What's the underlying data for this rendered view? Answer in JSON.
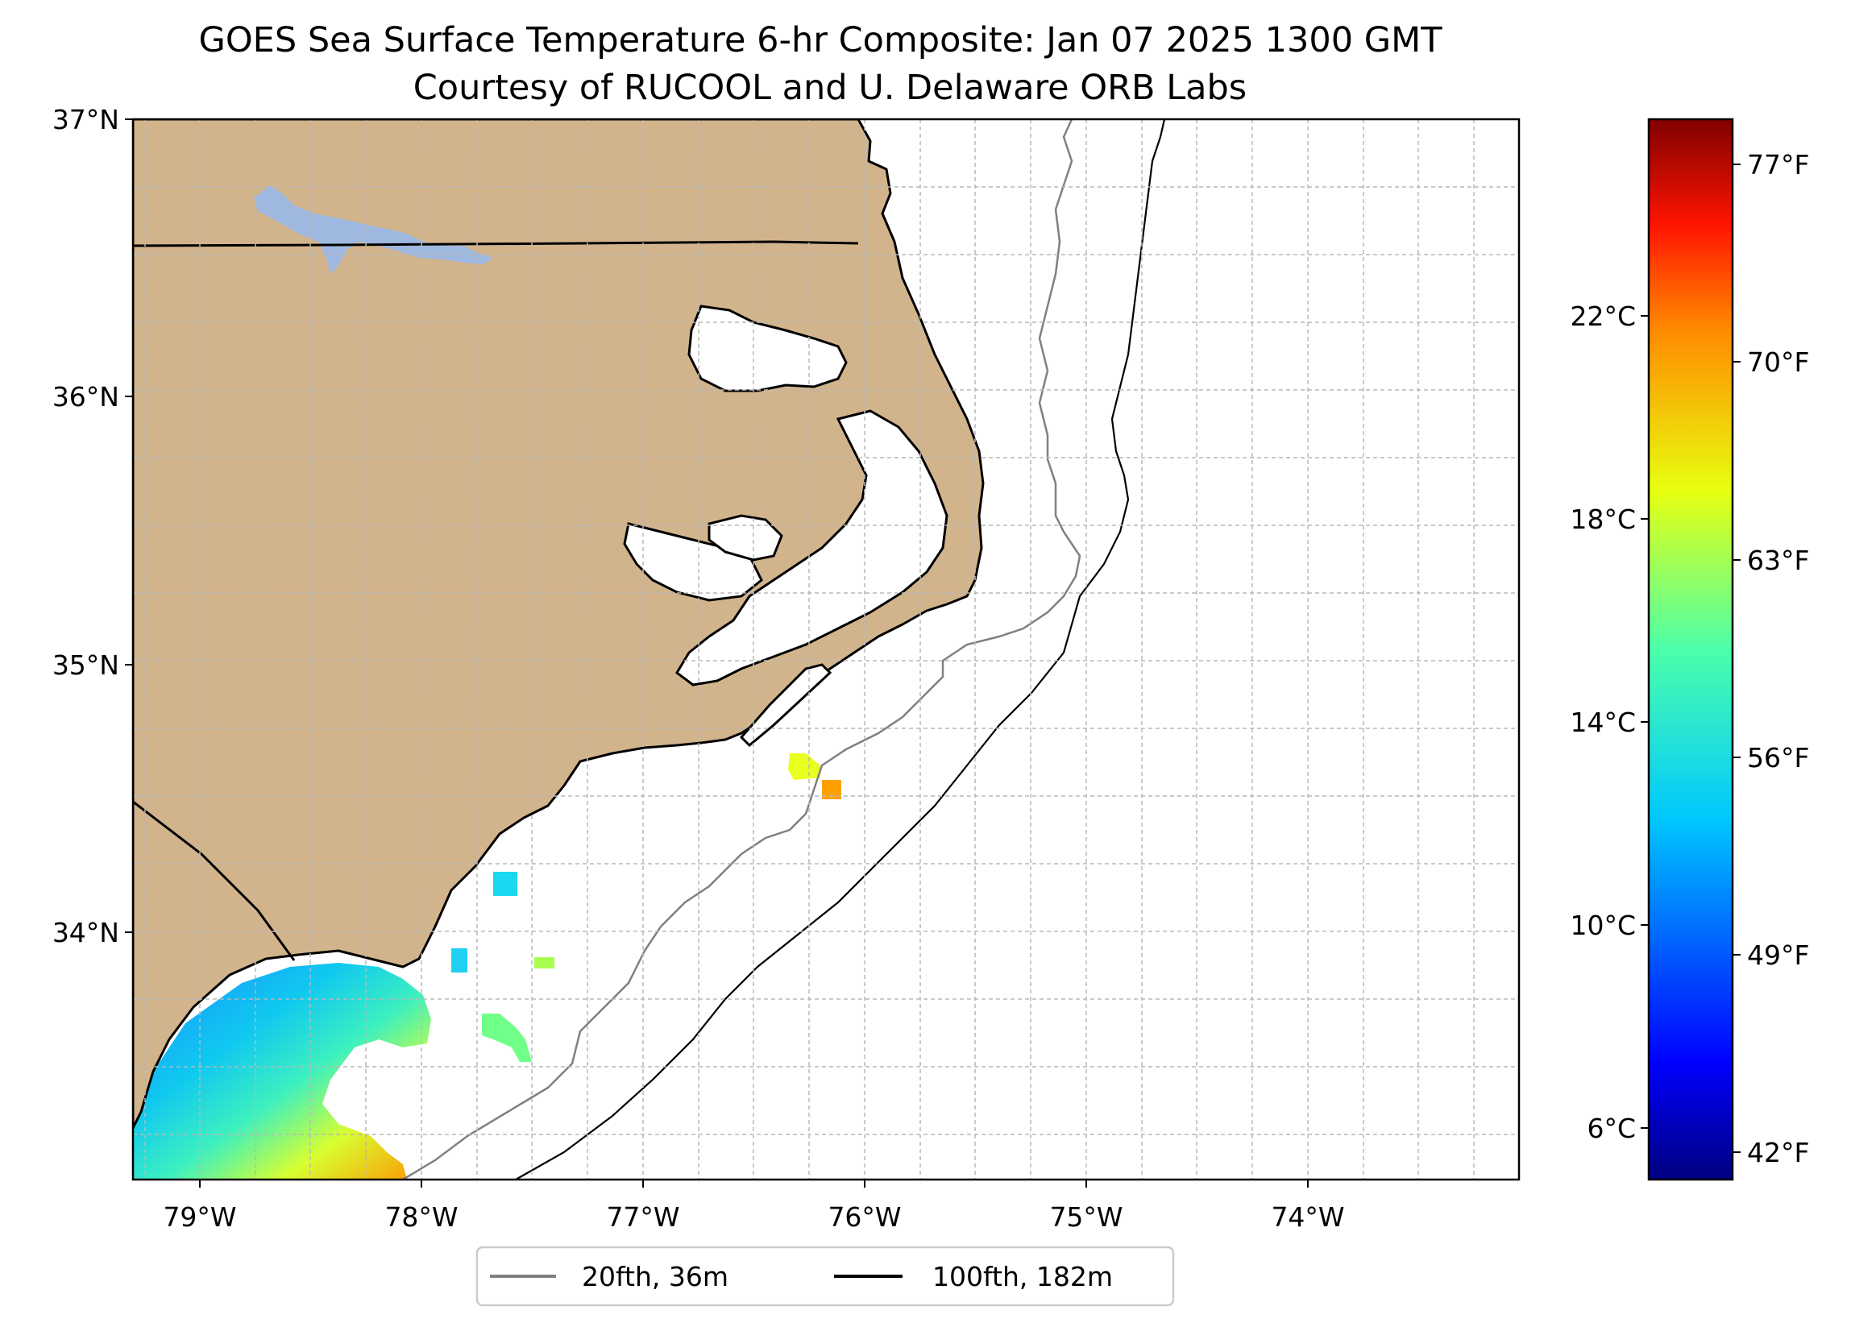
{
  "title": {
    "line1": "GOES Sea Surface Temperature 6-hr Composite: Jan 07 2025 1300 GMT",
    "line2": "Courtesy of RUCOOL and U. Delaware ORB Labs"
  },
  "map": {
    "lon_range": [
      -79.3,
      -73.05
    ],
    "lat_range": [
      33.1,
      37.0
    ],
    "grid": true,
    "lat_ticks": [
      {
        "value": 37,
        "label": "37°N"
      },
      {
        "value": 36,
        "label": "36°N"
      },
      {
        "value": 35,
        "label": "35°N"
      },
      {
        "value": 34,
        "label": "34°N"
      }
    ],
    "lon_ticks": [
      {
        "value": -79,
        "label": "79°W"
      },
      {
        "value": -78,
        "label": "78°W"
      },
      {
        "value": -77,
        "label": "77°W"
      },
      {
        "value": -76,
        "label": "76°W"
      },
      {
        "value": -75,
        "label": "75°W"
      },
      {
        "value": -74,
        "label": "74°W"
      }
    ],
    "colors": {
      "land": "#d2b48c",
      "coast": "#000000",
      "lake": "#9fb8df",
      "isobath_20": "#808080",
      "isobath_100": "#000000",
      "grid": "#b8b8b8"
    }
  },
  "sst_colorbar": {
    "range_c": [
      5.0,
      26.0
    ],
    "celsius_ticks": [
      {
        "value": 6,
        "label": "6°C"
      },
      {
        "value": 10,
        "label": "10°C"
      },
      {
        "value": 14,
        "label": "14°C"
      },
      {
        "value": 18,
        "label": "18°C"
      },
      {
        "value": 22,
        "label": "22°C"
      }
    ],
    "fahrenheit_ticks": [
      {
        "value": 42,
        "label": "42°F"
      },
      {
        "value": 49,
        "label": "49°F"
      },
      {
        "value": 56,
        "label": "56°F"
      },
      {
        "value": 63,
        "label": "63°F"
      },
      {
        "value": 70,
        "label": "70°F"
      },
      {
        "value": 77,
        "label": "77°F"
      }
    ]
  },
  "legend": {
    "placement": "bottom-center",
    "items": [
      {
        "label": "20fth, 36m",
        "color": "#808080"
      },
      {
        "label": "100fth, 182m",
        "color": "#000000"
      }
    ]
  }
}
